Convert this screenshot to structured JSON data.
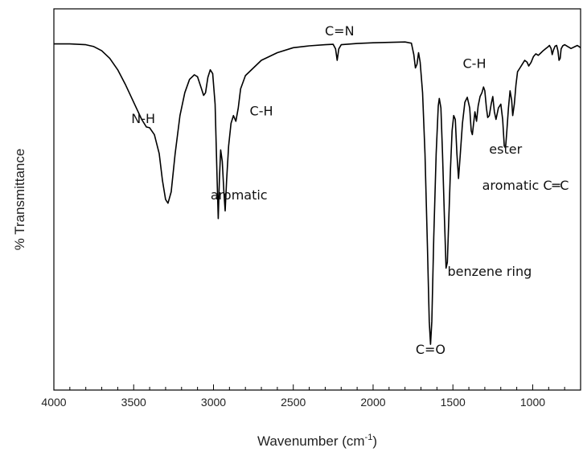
{
  "chart_data": {
    "type": "line",
    "title": "",
    "xlabel": {
      "prefix": "Wavenumber (cm",
      "superscript": "-1",
      "suffix": ")"
    },
    "ylabel": "% Transmittance",
    "xlim": [
      4000,
      700
    ],
    "ylim": [
      0,
      100
    ],
    "x_reversed": true,
    "y_tick_labels_shown": false,
    "grid": false,
    "legend": "none",
    "x_ticks": [
      4000,
      3500,
      3000,
      2500,
      2000,
      1500,
      1000
    ],
    "x_tick_labels": [
      "4000",
      "3500",
      "3000",
      "2500",
      "2000",
      "1500",
      "1000"
    ],
    "series": [
      {
        "color": "#000000",
        "points": [
          [
            4000,
            90.8
          ],
          [
            3900,
            90.8
          ],
          [
            3800,
            90.6
          ],
          [
            3750,
            90.1
          ],
          [
            3700,
            89.0
          ],
          [
            3650,
            87.0
          ],
          [
            3600,
            84.0
          ],
          [
            3550,
            80.0
          ],
          [
            3500,
            75.5
          ],
          [
            3450,
            71.0
          ],
          [
            3420,
            69.0
          ],
          [
            3400,
            68.8
          ],
          [
            3370,
            67.0
          ],
          [
            3340,
            62.0
          ],
          [
            3320,
            55.0
          ],
          [
            3300,
            50.0
          ],
          [
            3285,
            49.0
          ],
          [
            3265,
            52.0
          ],
          [
            3240,
            62.0
          ],
          [
            3210,
            72.0
          ],
          [
            3180,
            78.0
          ],
          [
            3150,
            81.5
          ],
          [
            3120,
            82.7
          ],
          [
            3100,
            82.2
          ],
          [
            3075,
            79.0
          ],
          [
            3062,
            77.3
          ],
          [
            3050,
            78.0
          ],
          [
            3035,
            82.0
          ],
          [
            3020,
            84.0
          ],
          [
            3005,
            83.0
          ],
          [
            2990,
            75.0
          ],
          [
            2978,
            56.0
          ],
          [
            2970,
            45.0
          ],
          [
            2963,
            55.0
          ],
          [
            2955,
            63.0
          ],
          [
            2945,
            60.0
          ],
          [
            2935,
            52.0
          ],
          [
            2927,
            47.0
          ],
          [
            2918,
            55.0
          ],
          [
            2905,
            64.0
          ],
          [
            2890,
            70.0
          ],
          [
            2875,
            72.0
          ],
          [
            2860,
            70.5
          ],
          [
            2845,
            74.0
          ],
          [
            2830,
            79.0
          ],
          [
            2800,
            82.5
          ],
          [
            2700,
            86.5
          ],
          [
            2600,
            88.5
          ],
          [
            2500,
            89.8
          ],
          [
            2400,
            90.3
          ],
          [
            2300,
            90.6
          ],
          [
            2250,
            90.7
          ],
          [
            2235,
            89.5
          ],
          [
            2225,
            86.5
          ],
          [
            2215,
            89.5
          ],
          [
            2200,
            90.6
          ],
          [
            2100,
            90.9
          ],
          [
            2000,
            91.1
          ],
          [
            1900,
            91.2
          ],
          [
            1800,
            91.3
          ],
          [
            1760,
            91.0
          ],
          [
            1745,
            88.0
          ],
          [
            1735,
            84.5
          ],
          [
            1725,
            85.5
          ],
          [
            1715,
            88.5
          ],
          [
            1705,
            86.0
          ],
          [
            1690,
            78.0
          ],
          [
            1675,
            62.0
          ],
          [
            1660,
            38.0
          ],
          [
            1648,
            18.0
          ],
          [
            1640,
            12.0
          ],
          [
            1632,
            18.0
          ],
          [
            1620,
            40.0
          ],
          [
            1605,
            62.0
          ],
          [
            1592,
            74.5
          ],
          [
            1585,
            76.5
          ],
          [
            1575,
            74.0
          ],
          [
            1565,
            62.0
          ],
          [
            1553,
            45.0
          ],
          [
            1543,
            32.0
          ],
          [
            1535,
            33.5
          ],
          [
            1525,
            46.0
          ],
          [
            1515,
            58.0
          ],
          [
            1505,
            68.0
          ],
          [
            1495,
            72.0
          ],
          [
            1485,
            71.0
          ],
          [
            1475,
            62.0
          ],
          [
            1465,
            55.5
          ],
          [
            1455,
            61.0
          ],
          [
            1440,
            70.0
          ],
          [
            1425,
            75.5
          ],
          [
            1410,
            76.8
          ],
          [
            1395,
            74.0
          ],
          [
            1385,
            68.0
          ],
          [
            1378,
            67.0
          ],
          [
            1370,
            70.0
          ],
          [
            1362,
            73.0
          ],
          [
            1352,
            70.5
          ],
          [
            1342,
            74.5
          ],
          [
            1330,
            77.0
          ],
          [
            1318,
            78.0
          ],
          [
            1308,
            79.5
          ],
          [
            1300,
            78.5
          ],
          [
            1290,
            74.0
          ],
          [
            1282,
            71.5
          ],
          [
            1272,
            72.0
          ],
          [
            1260,
            75.0
          ],
          [
            1250,
            77.0
          ],
          [
            1240,
            73.0
          ],
          [
            1230,
            71.0
          ],
          [
            1215,
            74.0
          ],
          [
            1200,
            75.0
          ],
          [
            1188,
            71.0
          ],
          [
            1178,
            64.0
          ],
          [
            1170,
            63.5
          ],
          [
            1162,
            68.0
          ],
          [
            1152,
            74.0
          ],
          [
            1142,
            78.5
          ],
          [
            1132,
            76.0
          ],
          [
            1125,
            72.0
          ],
          [
            1115,
            75.0
          ],
          [
            1105,
            80.0
          ],
          [
            1095,
            83.5
          ],
          [
            1080,
            84.5
          ],
          [
            1065,
            85.5
          ],
          [
            1050,
            86.5
          ],
          [
            1035,
            86.0
          ],
          [
            1025,
            85.0
          ],
          [
            1010,
            86.0
          ],
          [
            995,
            87.5
          ],
          [
            980,
            88.2
          ],
          [
            965,
            87.8
          ],
          [
            950,
            88.4
          ],
          [
            935,
            89.0
          ],
          [
            920,
            89.5
          ],
          [
            905,
            90.0
          ],
          [
            895,
            90.4
          ],
          [
            885,
            89.6
          ],
          [
            878,
            88.0
          ],
          [
            870,
            89.2
          ],
          [
            860,
            90.2
          ],
          [
            850,
            90.4
          ],
          [
            842,
            89.0
          ],
          [
            835,
            86.5
          ],
          [
            828,
            87.0
          ],
          [
            822,
            89.5
          ],
          [
            812,
            90.3
          ],
          [
            800,
            90.6
          ],
          [
            780,
            90.1
          ],
          [
            760,
            89.6
          ],
          [
            740,
            90.0
          ],
          [
            720,
            90.4
          ],
          [
            700,
            89.8
          ]
        ]
      }
    ],
    "annotations": [
      {
        "text": "N-H",
        "x": 3440,
        "y": 70.0
      },
      {
        "text": "aromatic",
        "x": 2840,
        "y": 50.0
      },
      {
        "text": "C-H",
        "x": 2700,
        "y": 72.0
      },
      {
        "text": "C=N",
        "x": 2210,
        "y": 93.0
      },
      {
        "text": "C=O",
        "x": 1640,
        "y": 9.5
      },
      {
        "text": "benzene ring",
        "x": 1270,
        "y": 30.0
      },
      {
        "text": "C-H",
        "x": 1365,
        "y": 84.5
      },
      {
        "text": "ester",
        "x": 1170,
        "y": 62.0
      },
      {
        "text": "aromatic C═C",
        "x": 1045,
        "y": 52.5
      }
    ]
  }
}
